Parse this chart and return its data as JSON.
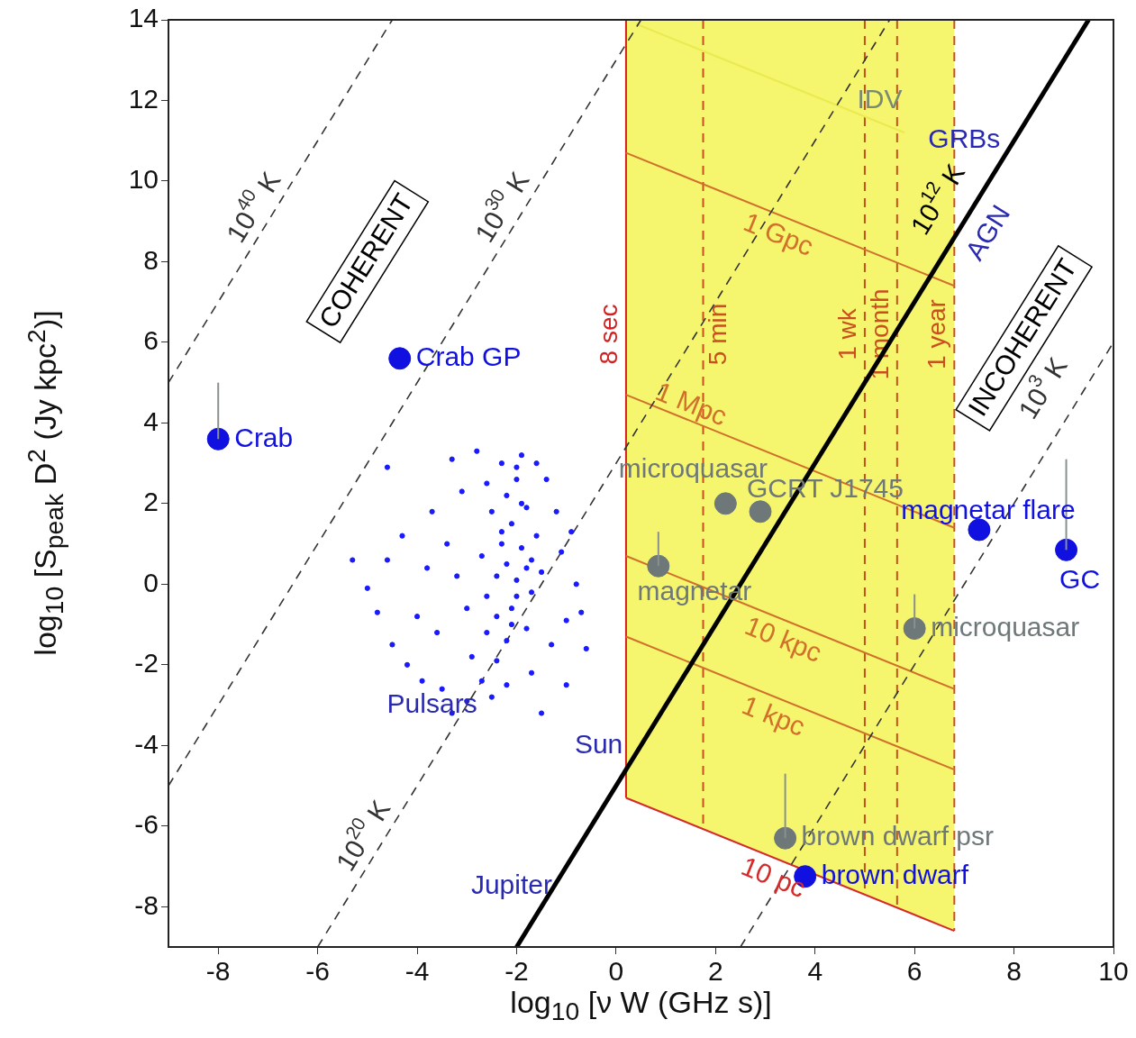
{
  "chart_data": {
    "type": "scatter",
    "xlabel": "log$_{10}$ [ν W (GHz s)]",
    "ylabel": "log$_{10}$ [S$_{peak}$ D$^{2}$ (Jy kpc$^{2}$)]",
    "xlim": [
      -9,
      10
    ],
    "xticks": [
      -8,
      -6,
      -4,
      -2,
      0,
      2,
      4,
      6,
      8,
      10
    ],
    "ylim": [
      -9,
      14
    ],
    "yticks": [
      -8,
      -6,
      -4,
      -2,
      0,
      2,
      4,
      6,
      8,
      10,
      12,
      14
    ],
    "grid": false,
    "legend": false,
    "bands": [
      {
        "axis": "x",
        "from": 0.2,
        "to": 6.8,
        "color": "#f5f56e"
      }
    ],
    "series": [
      {
        "type": "line",
        "name": "1 Gpc",
        "color": "#d0702a",
        "x": [
          0.2,
          6.8
        ],
        "values": [
          10.7,
          7.4
        ]
      },
      {
        "type": "line",
        "name": "1 Mpc",
        "color": "#d0702a",
        "x": [
          0.2,
          6.8
        ],
        "values": [
          4.7,
          1.4
        ]
      },
      {
        "type": "line",
        "name": "10 kpc",
        "color": "#d0702a",
        "x": [
          0.2,
          6.8
        ],
        "values": [
          0.7,
          -2.6
        ]
      },
      {
        "type": "line",
        "name": "1 kpc",
        "color": "#d0702a",
        "x": [
          0.2,
          6.8
        ],
        "values": [
          -1.3,
          -4.6
        ]
      },
      {
        "type": "line",
        "name": "10 pc",
        "color": "#d42a2a",
        "x": [
          0.2,
          6.8
        ],
        "values": [
          -5.3,
          -8.6
        ]
      },
      {
        "type": "line",
        "color": "#eaea50",
        "x": [
          0.4,
          5.8
        ],
        "values": [
          13.9,
          11.2
        ]
      },
      {
        "type": "line",
        "name": "10$^{40}$ K",
        "color": "#333333",
        "line_style": "dashed",
        "x": [
          -9,
          -4.5
        ],
        "values": [
          5,
          14
        ]
      },
      {
        "type": "line",
        "name": "10$^{30}$ K",
        "color": "#333333",
        "line_style": "dashed",
        "x": [
          -9,
          0.5
        ],
        "values": [
          -5,
          14
        ]
      },
      {
        "type": "line",
        "name": "10$^{20}$ K",
        "color": "#333333",
        "line_style": "dashed",
        "x": [
          -6,
          5.5
        ],
        "values": [
          -9,
          14
        ]
      },
      {
        "type": "line",
        "name": "10$^{12}$ K",
        "color": "#000000",
        "x": [
          -2,
          9.5
        ],
        "values": [
          -9,
          14
        ]
      },
      {
        "type": "line",
        "name": "10$^{3}$ K",
        "color": "#333333",
        "line_style": "dashed",
        "x": [
          2.5,
          10
        ],
        "values": [
          -9,
          6
        ]
      },
      {
        "marker": "circle",
        "color": "#1a1aff",
        "x": [
          -2.4,
          -2.2,
          -2.0,
          -1.8,
          -2.6,
          -2.3,
          -2.1,
          -1.9,
          -1.7,
          -2.5,
          -2.2,
          -2.0,
          -1.6,
          -2.4,
          -2.1,
          -1.8,
          -2.7,
          -2.3,
          -1.9,
          -1.5,
          -2.2,
          -2.0,
          -2.6,
          -1.8,
          -2.4,
          -2.0,
          -1.7,
          -2.3,
          -2.1,
          -1.9,
          -3.4,
          -3.2,
          -3.0,
          -3.1,
          -2.9,
          -3.6,
          -3.8,
          -4.0,
          -4.3,
          -4.6,
          -5.3,
          -5.0,
          -4.5,
          -4.2,
          -3.9,
          -3.5,
          -3.3,
          -3.0,
          -2.7,
          -2.5,
          -2.2,
          -1.5,
          -1.7,
          -1.3,
          -1.0,
          -0.8,
          -1.1,
          -1.2,
          -1.4,
          -1.6,
          -2.8,
          -3.3,
          -4.6,
          -0.6,
          -0.9,
          -2.6,
          -3.7,
          -4.8,
          -1.0,
          -0.7
        ],
        "values": [
          0.2,
          0.5,
          0.1,
          0.4,
          -0.3,
          1.0,
          1.5,
          0.9,
          -0.2,
          1.8,
          2.2,
          2.6,
          1.2,
          -0.8,
          -0.6,
          -1.1,
          0.7,
          3.0,
          3.2,
          0.3,
          -1.4,
          2.9,
          2.5,
          1.9,
          -1.9,
          -0.3,
          0.6,
          1.3,
          -1.0,
          2.0,
          1.0,
          0.2,
          -0.6,
          2.3,
          -1.8,
          -1.2,
          0.4,
          -0.8,
          1.2,
          0.6,
          0.6,
          -0.1,
          -1.5,
          -2.0,
          -2.4,
          -2.6,
          -3.2,
          -2.9,
          -2.4,
          -2.8,
          -2.5,
          -3.2,
          -2.2,
          -1.5,
          -0.9,
          0.0,
          0.8,
          1.8,
          2.6,
          3.0,
          3.3,
          3.1,
          2.9,
          -1.6,
          1.3,
          -1.2,
          1.8,
          -0.7,
          -2.5,
          -0.7
        ]
      },
      {
        "marker": "circle",
        "name": "Crab",
        "color": "#1010e0",
        "x": [
          -8
        ],
        "values": [
          3.6
        ],
        "errors": [
          [
            3.6,
            5.0
          ]
        ]
      },
      {
        "marker": "circle",
        "name": "Crab GP",
        "color": "#1010e0",
        "x": [
          -4.35
        ],
        "values": [
          5.6
        ]
      },
      {
        "marker": "circle",
        "name": "magnetar flare",
        "color": "#1010e0",
        "x": [
          7.3
        ],
        "values": [
          1.35
        ]
      },
      {
        "marker": "circle",
        "name": "GC",
        "color": "#1010e0",
        "x": [
          9.05
        ],
        "values": [
          0.85
        ],
        "errors": [
          [
            0.85,
            3.1
          ]
        ]
      },
      {
        "marker": "circle",
        "name": "brown dwarf",
        "color": "#1010e0",
        "x": [
          3.8
        ],
        "values": [
          -7.25
        ]
      },
      {
        "marker": "circle",
        "name": "microquasar",
        "color": "#6e7878",
        "x": [
          2.2
        ],
        "values": [
          2.0
        ]
      },
      {
        "marker": "circle",
        "name": "GCRT J1745",
        "color": "#6e7878",
        "x": [
          2.9
        ],
        "values": [
          1.8
        ]
      },
      {
        "marker": "circle",
        "name": "magnetar",
        "color": "#6e7878",
        "x": [
          0.85
        ],
        "values": [
          0.45
        ],
        "errors": [
          [
            0.45,
            1.3
          ]
        ]
      },
      {
        "marker": "circle",
        "name": "microquasar",
        "color": "#6e7878",
        "x": [
          6.0
        ],
        "values": [
          -1.1
        ],
        "errors": [
          [
            -1.1,
            -0.25
          ]
        ]
      },
      {
        "marker": "circle",
        "name": "brown dwarf psr",
        "color": "#6e7878",
        "x": [
          3.4
        ],
        "values": [
          -6.3
        ],
        "errors": [
          [
            -6.3,
            -4.7
          ]
        ]
      }
    ],
    "ref_lines": [
      {
        "axis": "x",
        "value": 0.2,
        "label": "8 sec",
        "color": "#d42020",
        "line_style": "solid"
      },
      {
        "axis": "x",
        "value": 1.75,
        "label": "5 min",
        "color": "#c8501e",
        "line_style": "dashed"
      },
      {
        "axis": "x",
        "value": 5.0,
        "label": "1 wk",
        "color": "#c8501e",
        "line_style": "dashed"
      },
      {
        "axis": "x",
        "value": 5.65,
        "label": "1 month",
        "color": "#c8501e",
        "line_style": "dashed"
      },
      {
        "axis": "x",
        "value": 6.8,
        "label": "1 year",
        "color": "#c8501e",
        "line_style": "dashed"
      }
    ],
    "annotations": [
      "COHERENT",
      "INCOHERENT",
      "AGN",
      "IDV",
      "GRBs",
      "Pulsars",
      "Sun",
      "Jupiter"
    ]
  }
}
